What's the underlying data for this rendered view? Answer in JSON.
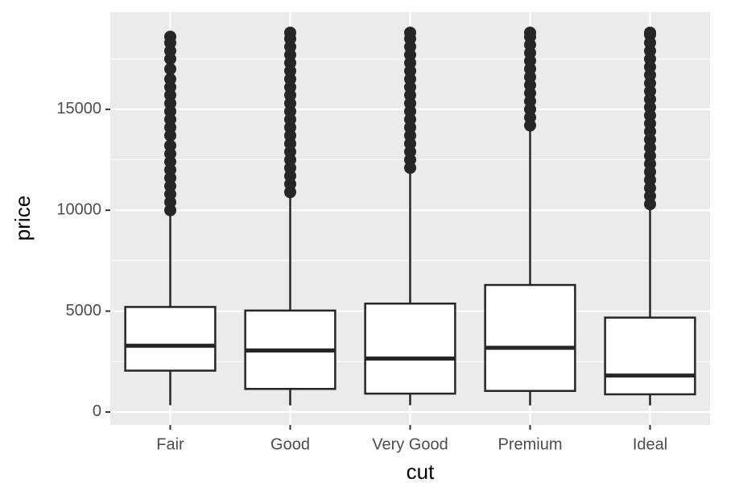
{
  "chart_data": {
    "type": "boxplot",
    "x_label": "cut",
    "y_label": "price",
    "categories": [
      "Fair",
      "Good",
      "Very Good",
      "Premium",
      "Ideal"
    ],
    "boxes": [
      {
        "whisker_low": 337,
        "q1": 2050,
        "median": 3282,
        "q3": 5206,
        "whisker_high": 9880,
        "outliers": [
          10000,
          10400,
          10800,
          11200,
          11600,
          12000,
          12400,
          12800,
          13200,
          13700,
          14100,
          14500,
          14900,
          15300,
          15700,
          16100,
          16500,
          17000,
          17500,
          17900,
          18300,
          18600
        ]
      },
      {
        "whisker_low": 327,
        "q1": 1145,
        "median": 3050,
        "q3": 5028,
        "whisker_high": 10800,
        "outliers": [
          10900,
          11300,
          11700,
          12100,
          12500,
          12900,
          13300,
          13700,
          14100,
          14500,
          14900,
          15300,
          15700,
          16100,
          16500,
          16900,
          17300,
          17700,
          18100,
          18500,
          18800
        ]
      },
      {
        "whisker_low": 336,
        "q1": 912,
        "median": 2648,
        "q3": 5373,
        "whisker_high": 12000,
        "outliers": [
          12100,
          12500,
          12900,
          13300,
          13700,
          14100,
          14500,
          14900,
          15300,
          15700,
          16100,
          16500,
          16900,
          17300,
          17700,
          18100,
          18500,
          18800
        ]
      },
      {
        "whisker_low": 326,
        "q1": 1046,
        "median": 3185,
        "q3": 6296,
        "whisker_high": 14100,
        "outliers": [
          14200,
          14600,
          15000,
          15400,
          15800,
          16200,
          16600,
          17000,
          17400,
          17800,
          18200,
          18600,
          18800
        ]
      },
      {
        "whisker_low": 326,
        "q1": 878,
        "median": 1810,
        "q3": 4679,
        "whisker_high": 10300,
        "outliers": [
          10300,
          10700,
          11100,
          11500,
          11900,
          12300,
          12700,
          13100,
          13500,
          13900,
          14300,
          14700,
          15100,
          15500,
          15900,
          16300,
          16700,
          17100,
          17500,
          17900,
          18300,
          18700,
          18800
        ]
      }
    ],
    "ylim": [
      -640,
      19820
    ],
    "yticks": [
      0,
      5000,
      10000,
      15000
    ],
    "minor_yticks": [
      2500,
      7500,
      12500,
      17500
    ],
    "grid": true,
    "color": "#262626",
    "box_fill": "#ffffff",
    "panel_color": "#ebebeb"
  }
}
